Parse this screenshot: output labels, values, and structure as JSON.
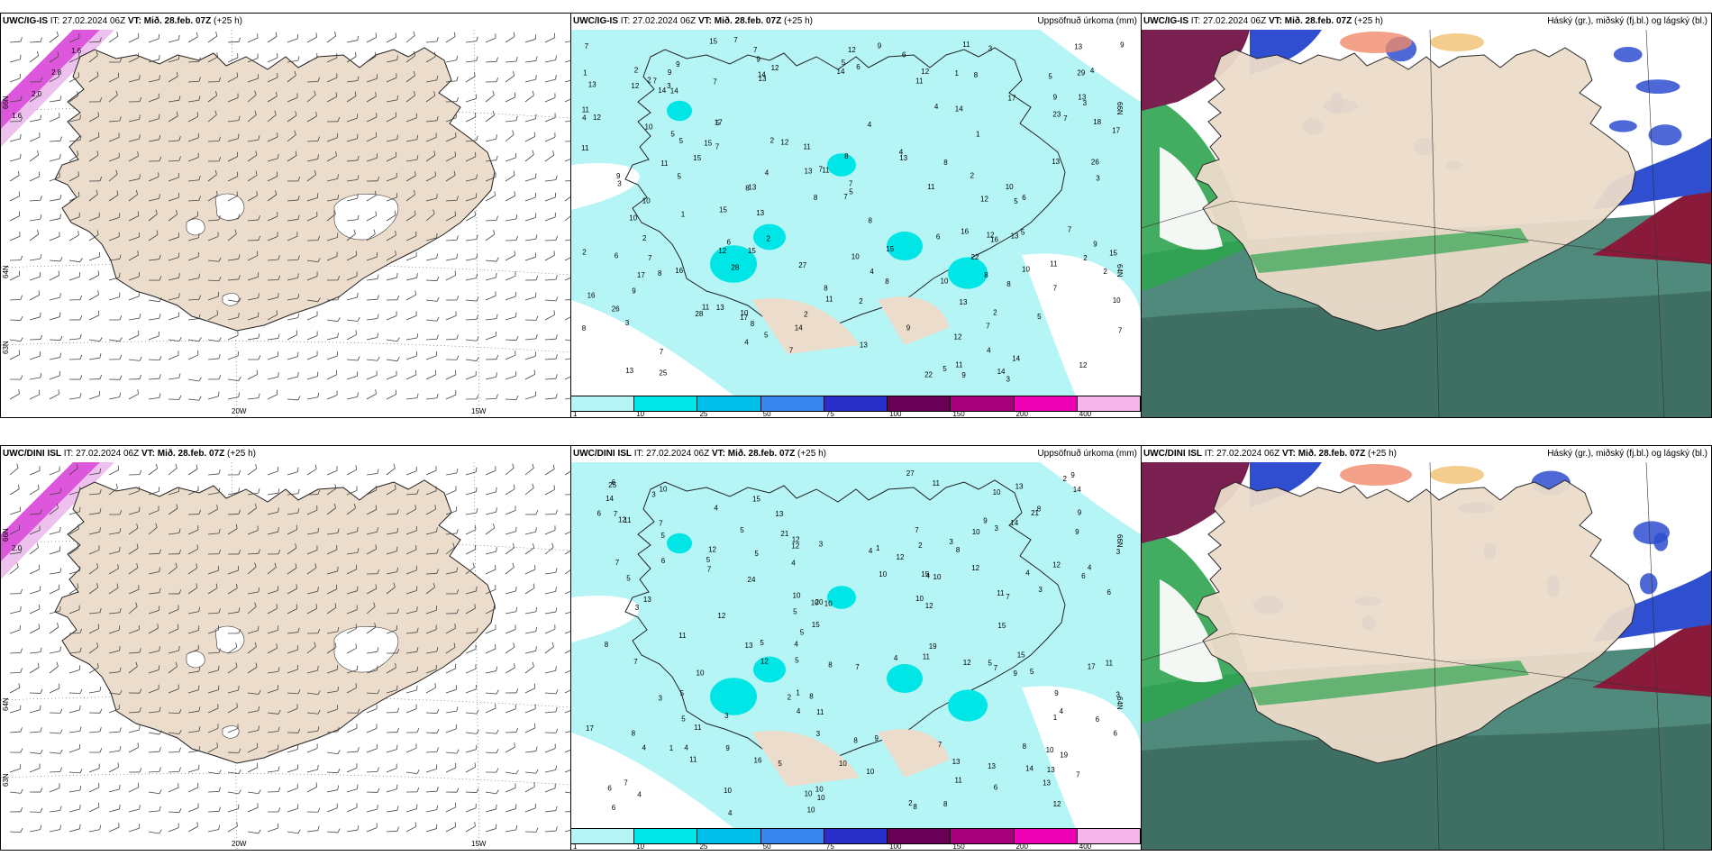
{
  "panels": [
    {
      "model": "UWC/IG-IS",
      "it_label": "IT:",
      "it_value": "27.02.2024 06Z",
      "vt_label": "VT:",
      "vt_value": "Mið. 28.feb. 07Z",
      "lead": "(+25 h)",
      "right_title": "",
      "type": "wind",
      "axis": {
        "lon": [
          "20W",
          "15W"
        ],
        "lat": [
          "66N",
          "64N",
          "63N"
        ]
      },
      "contour_labels": [
        "1.6",
        "2.0",
        "2.8",
        "1.6"
      ]
    },
    {
      "model": "UWC/IG-IS",
      "it_label": "IT:",
      "it_value": "27.02.2024 06Z",
      "vt_label": "VT:",
      "vt_value": "Mið. 28.feb. 07Z",
      "lead": "(+25 h)",
      "right_title": "Uppsöfnuð úrkoma (mm)",
      "type": "precip",
      "axis": {
        "lat": [
          "66N",
          "64N"
        ]
      },
      "numbers": [
        "7",
        "2",
        "2",
        "8",
        "5",
        "9",
        "8",
        "7",
        "12",
        "13",
        "15",
        "6",
        "12",
        "9",
        "8",
        "11",
        "7",
        "9",
        "15",
        "8",
        "4",
        "12",
        "14",
        "13",
        "14",
        "11",
        "6",
        "13",
        "8",
        "12",
        "13",
        "12",
        "8",
        "5",
        "7",
        "11",
        "14",
        "8",
        "11",
        "9",
        "7",
        "8",
        "7",
        "5",
        "9",
        "10",
        "13",
        "13",
        "14",
        "15",
        "7",
        "12",
        "13",
        "17",
        "13",
        "13",
        "12",
        "11",
        "10",
        "15",
        "15",
        "17",
        "18",
        "22",
        "14",
        "12",
        "16",
        "11",
        "7",
        "5",
        "9",
        "12",
        "15",
        "10",
        "14",
        "12",
        "8",
        "11",
        "4",
        "10",
        "13",
        "13",
        "16",
        "14",
        "7",
        "16",
        "10",
        "4",
        "7",
        "12",
        "11",
        "8",
        "10",
        "15",
        "16",
        "5",
        "17",
        "7",
        "8",
        "6",
        "3",
        "10",
        "7",
        "11",
        "5",
        "14",
        "5",
        "8",
        "17",
        "9",
        "9",
        "4",
        "6",
        "9",
        "3",
        "10",
        "7",
        "4",
        "5",
        "7",
        "4",
        "8",
        "13",
        "6",
        "4",
        "2",
        "7",
        "9",
        "1",
        "22",
        "17",
        "26",
        "28",
        "29",
        "28",
        "7",
        "5",
        "5",
        "4",
        "9",
        "3",
        "10",
        "11",
        "11",
        "13",
        "7",
        "2",
        "2",
        "2",
        "5",
        "6",
        "4",
        "26",
        "27",
        "23",
        "25",
        "3",
        "3",
        "2",
        "11",
        "13",
        "1",
        "2",
        "2",
        "1",
        "1",
        "2",
        "2",
        "3",
        "3",
        "2",
        "5"
      ],
      "legend_ticks": [
        "1",
        "10",
        "25",
        "50",
        "75",
        "100",
        "150",
        "200",
        "400"
      ],
      "legend_colors": [
        "#b6f5f5",
        "#00e5e5",
        "#00bfe8",
        "#3a86f0",
        "#2b2fc9",
        "#6a0055",
        "#a6007a",
        "#ee00b5",
        "#f5b7ea"
      ]
    },
    {
      "model": "UWC/IG-IS",
      "it_label": "IT:",
      "it_value": "27.02.2024 06Z",
      "vt_label": "VT:",
      "vt_value": "Mið. 28.feb. 07Z",
      "lead": "(+25 h)",
      "right_title": "Háský (gr.), miðský (fj.bl.) og lágský (bl.)",
      "type": "cloud"
    },
    {
      "model": "UWC/DINI ISL",
      "it_label": "IT:",
      "it_value": "27.02.2024 06Z",
      "vt_label": "VT:",
      "vt_value": "Mið. 28.feb. 07Z",
      "lead": "(+25 h)",
      "right_title": "",
      "type": "wind",
      "axis": {
        "lon": [
          "20W",
          "15W"
        ],
        "lat": [
          "66N",
          "64N",
          "63N"
        ]
      },
      "contour_labels": [
        "2.0"
      ]
    },
    {
      "model": "UWC/DINI ISL",
      "it_label": "IT:",
      "it_value": "27.02.2024 06Z",
      "vt_label": "VT:",
      "vt_value": "Mið. 28.feb. 07Z",
      "lead": "(+25 h)",
      "right_title": "Uppsöfnuð úrkoma (mm)",
      "type": "precip",
      "axis": {
        "lat": [
          "66N",
          "64N"
        ]
      },
      "numbers": [
        "2",
        "4",
        "4",
        "2",
        "7",
        "2",
        "10",
        "8",
        "11",
        "3",
        "3",
        "12",
        "13",
        "15",
        "15",
        "5",
        "10",
        "12",
        "11",
        "6",
        "12",
        "9",
        "11",
        "10",
        "13",
        "11",
        "7",
        "8",
        "3",
        "7",
        "14",
        "12",
        "12",
        "14",
        "13",
        "10",
        "8",
        "10",
        "12",
        "10",
        "11",
        "10",
        "10",
        "12",
        "14",
        "9",
        "10",
        "27",
        "4",
        "6",
        "8",
        "10",
        "10",
        "9",
        "5",
        "5",
        "4",
        "10",
        "7",
        "5",
        "13",
        "7",
        "8",
        "7",
        "9",
        "5",
        "10",
        "6",
        "14",
        "12",
        "12",
        "8",
        "9",
        "7",
        "11",
        "13",
        "10",
        "12",
        "4",
        "16",
        "5",
        "12",
        "11",
        "7",
        "4",
        "11",
        "8",
        "13",
        "6",
        "9",
        "5",
        "4",
        "5",
        "4",
        "15",
        "6",
        "8",
        "9",
        "10",
        "7",
        "17",
        "6",
        "8",
        "5",
        "7",
        "15",
        "6",
        "9",
        "6",
        "5",
        "21",
        "17",
        "13",
        "5",
        "7",
        "20",
        "24",
        "19",
        "15",
        "4",
        "10",
        "3",
        "4",
        "8",
        "5",
        "10",
        "11",
        "7",
        "6",
        "13",
        "5",
        "4",
        "4",
        "3",
        "3",
        "5",
        "4",
        "3",
        "1",
        "1",
        "6",
        "4",
        "3",
        "3",
        "1",
        "1",
        "3",
        "2",
        "19",
        "12",
        "11",
        "10",
        "25",
        "21",
        "3"
      ],
      "legend_ticks": [
        "1",
        "10",
        "25",
        "50",
        "75",
        "100",
        "150",
        "200",
        "400"
      ],
      "legend_colors": [
        "#b6f5f5",
        "#00e5e5",
        "#00bfe8",
        "#3a86f0",
        "#2b2fc9",
        "#6a0055",
        "#a6007a",
        "#ee00b5",
        "#f5b7ea"
      ]
    },
    {
      "model": "UWC/DINI ISL",
      "it_label": "IT:",
      "it_value": "27.02.2024 06Z",
      "vt_label": "VT:",
      "vt_value": "Mið. 28.feb. 07Z",
      "lead": "(+25 h)",
      "right_title": "Háský (gr.), miðský (fj.bl.) og lágský (bl.)",
      "type": "cloud"
    }
  ],
  "colors": {
    "land": "#ecdccb",
    "sea": "#ffffff",
    "precip_light": "#b6f5f5",
    "precip_med": "#00e5e5",
    "cloud_high": "#2ea44f",
    "cloud_mid": "#2f4fd0",
    "cloud_low": "#4f8a7c",
    "wave_magenta": "#d63ad6"
  }
}
